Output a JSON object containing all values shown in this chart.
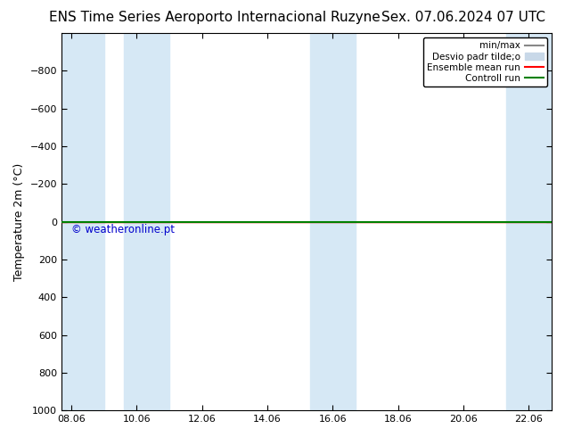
{
  "title_left": "ENS Time Series Aeroporto Internacional Ruzyne",
  "title_right": "Sex. 07.06.2024 07 UTC",
  "ylabel": "Temperature 2m (°C)",
  "ylim_bottom": 1000,
  "ylim_top": -1000,
  "yticks": [
    -800,
    -600,
    -400,
    -200,
    0,
    200,
    400,
    600,
    800,
    1000
  ],
  "x_dates": [
    "08.06",
    "10.06",
    "12.06",
    "14.06",
    "16.06",
    "18.06",
    "20.06",
    "22.06"
  ],
  "x_numeric": [
    0,
    2,
    4,
    6,
    8,
    10,
    12,
    14
  ],
  "xlim": [
    -0.3,
    14.7
  ],
  "shaded_bands": [
    [
      -0.3,
      1.0
    ],
    [
      1.6,
      3.0
    ],
    [
      7.3,
      8.7
    ],
    [
      13.3,
      14.7
    ]
  ],
  "shaded_color": "#d6e8f5",
  "background_color": "#ffffff",
  "flat_value": 0,
  "ensemble_mean_color": "#ff0000",
  "control_run_color": "#008000",
  "minmax_color": "#888888",
  "stddev_color": "#c8d8e8",
  "watermark": "© weatheronline.pt",
  "watermark_color": "#0000cc",
  "legend_labels": [
    "min/max",
    "Desvio padr tilde;o",
    "Ensemble mean run",
    "Controll run"
  ],
  "title_fontsize": 11,
  "axis_label_fontsize": 9,
  "tick_fontsize": 8
}
